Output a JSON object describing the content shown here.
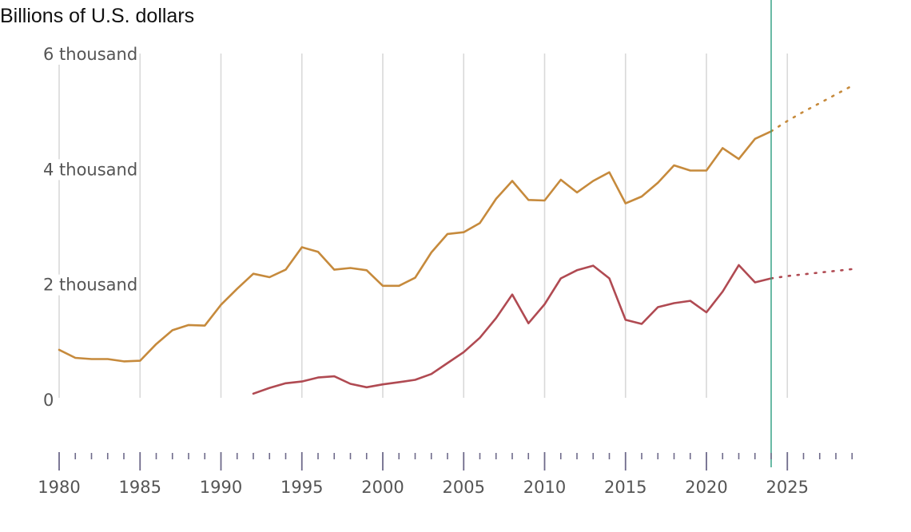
{
  "chart_data": {
    "type": "line",
    "title": "Billions of U.S. dollars",
    "xlabel": "",
    "ylabel": "",
    "xlim": [
      1980,
      2029
    ],
    "ylim": [
      0,
      6000
    ],
    "grid": true,
    "x_ticks": [
      {
        "value": 1980,
        "label": "1980"
      },
      {
        "value": 1985,
        "label": "1985"
      },
      {
        "value": 1990,
        "label": "1990"
      },
      {
        "value": 1995,
        "label": "1995"
      },
      {
        "value": 2000,
        "label": "2000"
      },
      {
        "value": 2005,
        "label": "2005"
      },
      {
        "value": 2010,
        "label": "2010"
      },
      {
        "value": 2015,
        "label": "2015"
      },
      {
        "value": 2020,
        "label": "2020"
      },
      {
        "value": 2025,
        "label": "2025"
      }
    ],
    "y_ticks": [
      {
        "value": 0,
        "label": "0"
      },
      {
        "value": 2000,
        "label": "2 thousand"
      },
      {
        "value": 4000,
        "label": "4 thousand"
      },
      {
        "value": 6000,
        "label": "6 thousand"
      }
    ],
    "reference_line_x": 2024,
    "series": [
      {
        "color": "#c68a3c",
        "x": [
          1980,
          1981,
          1982,
          1983,
          1984,
          1985,
          1986,
          1987,
          1988,
          1989,
          1990,
          1991,
          1992,
          1993,
          1994,
          1995,
          1996,
          1997,
          1998,
          1999,
          2000,
          2001,
          2002,
          2003,
          2004,
          2005,
          2006,
          2007,
          2008,
          2009,
          2010,
          2011,
          2012,
          2013,
          2014,
          2015,
          2016,
          2017,
          2018,
          2019,
          2020,
          2021,
          2022,
          2023,
          2024
        ],
        "values": [
          860,
          720,
          700,
          700,
          660,
          670,
          960,
          1200,
          1290,
          1280,
          1640,
          1920,
          2180,
          2120,
          2250,
          2640,
          2560,
          2250,
          2280,
          2240,
          1970,
          1970,
          2110,
          2550,
          2870,
          2900,
          3060,
          3480,
          3790,
          3460,
          3450,
          3810,
          3590,
          3790,
          3940,
          3400,
          3520,
          3760,
          4060,
          3970,
          3970,
          4360,
          4170,
          4520,
          4650
        ],
        "projection": {
          "x": [
            2024,
            2025,
            2026,
            2027,
            2028,
            2029
          ],
          "values": [
            4650,
            4830,
            4990,
            5140,
            5290,
            5440
          ]
        }
      },
      {
        "color": "#b04a52",
        "x": [
          1992,
          1993,
          1994,
          1995,
          1996,
          1997,
          1998,
          1999,
          2000,
          2001,
          2002,
          2003,
          2004,
          2005,
          2006,
          2007,
          2008,
          2009,
          2010,
          2011,
          2012,
          2013,
          2014,
          2015,
          2016,
          2017,
          2018,
          2019,
          2020,
          2021,
          2022,
          2023,
          2024
        ],
        "values": [
          100,
          200,
          280,
          310,
          380,
          400,
          270,
          210,
          260,
          300,
          340,
          440,
          630,
          820,
          1070,
          1410,
          1820,
          1320,
          1650,
          2100,
          2240,
          2320,
          2100,
          1380,
          1310,
          1600,
          1670,
          1710,
          1510,
          1870,
          2330,
          2030,
          2100
        ],
        "projection": {
          "x": [
            2024,
            2025,
            2026,
            2027,
            2028,
            2029
          ],
          "values": [
            2100,
            2140,
            2170,
            2200,
            2230,
            2260
          ]
        }
      }
    ]
  }
}
